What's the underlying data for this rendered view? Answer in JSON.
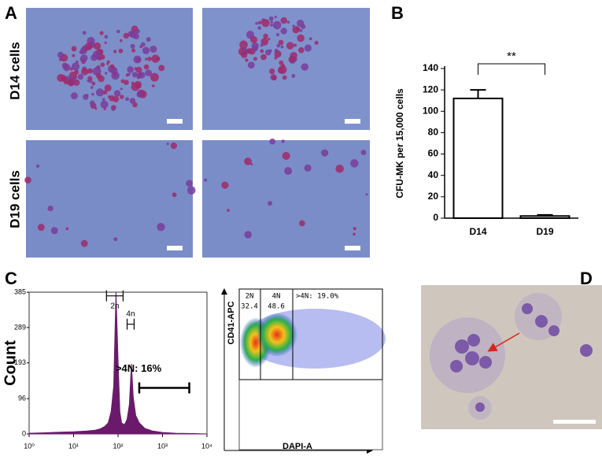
{
  "panel_labels": [
    "A",
    "B",
    "C",
    "D"
  ],
  "micrographs": {
    "row_labels": [
      "D14 cells",
      "D19 cells"
    ]
  },
  "chart_data": [
    {
      "type": "bar",
      "ylabel": "CFU-MK per 15,000 cells",
      "categories": [
        "D14",
        "D19"
      ],
      "values": [
        112,
        2
      ],
      "errors": [
        8,
        1
      ],
      "color": "#ffffff",
      "ylim": [
        0,
        140
      ],
      "yticks": [
        0,
        20,
        40,
        60,
        80,
        100,
        120,
        140
      ],
      "significance": "**"
    },
    {
      "type": "histogram",
      "ylabel": "Count",
      "xscale": "log",
      "color": "#6b1a6b",
      "x": [
        1,
        2,
        5,
        10,
        20,
        30,
        40,
        50,
        60,
        70,
        80,
        90,
        100,
        110,
        120,
        140,
        160,
        180,
        200,
        220,
        250,
        300,
        400,
        600,
        1000,
        2000,
        5000,
        10000
      ],
      "values": [
        2,
        3,
        5,
        6,
        8,
        10,
        14,
        20,
        30,
        60,
        130,
        385,
        200,
        60,
        30,
        25,
        40,
        80,
        190,
        100,
        50,
        30,
        15,
        8,
        4,
        2,
        1,
        0
      ],
      "xlim": [
        1,
        10000
      ],
      "xticks": [
        {
          "value": 1,
          "label": "10⁰"
        },
        {
          "value": 10,
          "label": "10¹"
        },
        {
          "value": 100,
          "label": "10²"
        },
        {
          "value": 1000,
          "label": "10³"
        },
        {
          "value": 10000,
          "label": "10⁴"
        }
      ],
      "ylim": [
        0,
        385
      ],
      "yticks": [
        0,
        96,
        193,
        289,
        385
      ],
      "gates": [
        {
          "label": "2n",
          "range": [
            55,
            130
          ],
          "level": 375
        },
        {
          "label": "4n",
          "range": [
            160,
            230
          ],
          "level": 298
        },
        {
          "label": ">4N: 16%",
          "range": [
            300,
            4000
          ],
          "level": 125
        }
      ]
    },
    {
      "type": "flow-gates",
      "xlabel": "DAPI-A",
      "ylabel": "CD41-APC",
      "gates": [
        {
          "label": "2N",
          "value": 32.4
        },
        {
          "label": "4N",
          "value": 48.6
        },
        {
          "label": ">4N: 19.0%"
        }
      ]
    }
  ]
}
